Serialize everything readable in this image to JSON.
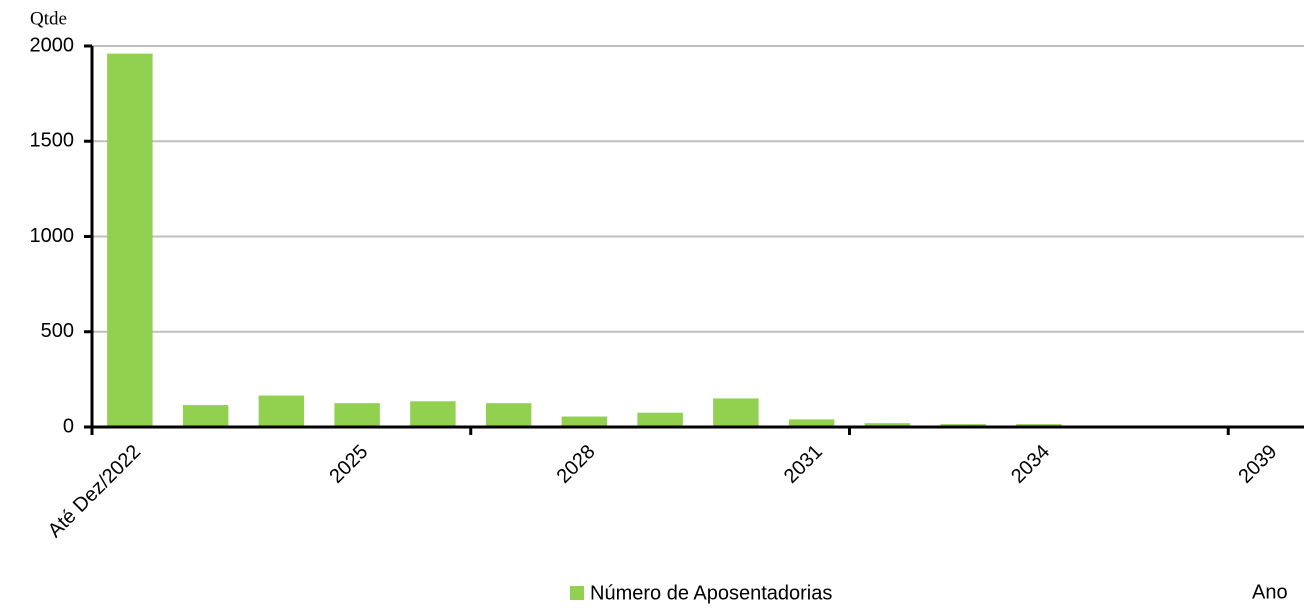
{
  "chart_data": {
    "type": "bar",
    "y_label": "Qtde",
    "x_label": "Ano",
    "categories": [
      "Até Dez/2022",
      null,
      null,
      "2025",
      null,
      null,
      "2028",
      null,
      null,
      "2031",
      null,
      null,
      "2034",
      null,
      null,
      "2039"
    ],
    "series": [
      {
        "name": "Número de Aposentadorias",
        "color": "#92d050",
        "values": [
          1960,
          115,
          165,
          125,
          135,
          125,
          55,
          75,
          150,
          40,
          20,
          15,
          15,
          5,
          3,
          2
        ]
      }
    ],
    "ylim": [
      0,
      2000
    ],
    "yticks": [
      0,
      500,
      1000,
      1500,
      2000
    ],
    "grid": true
  }
}
